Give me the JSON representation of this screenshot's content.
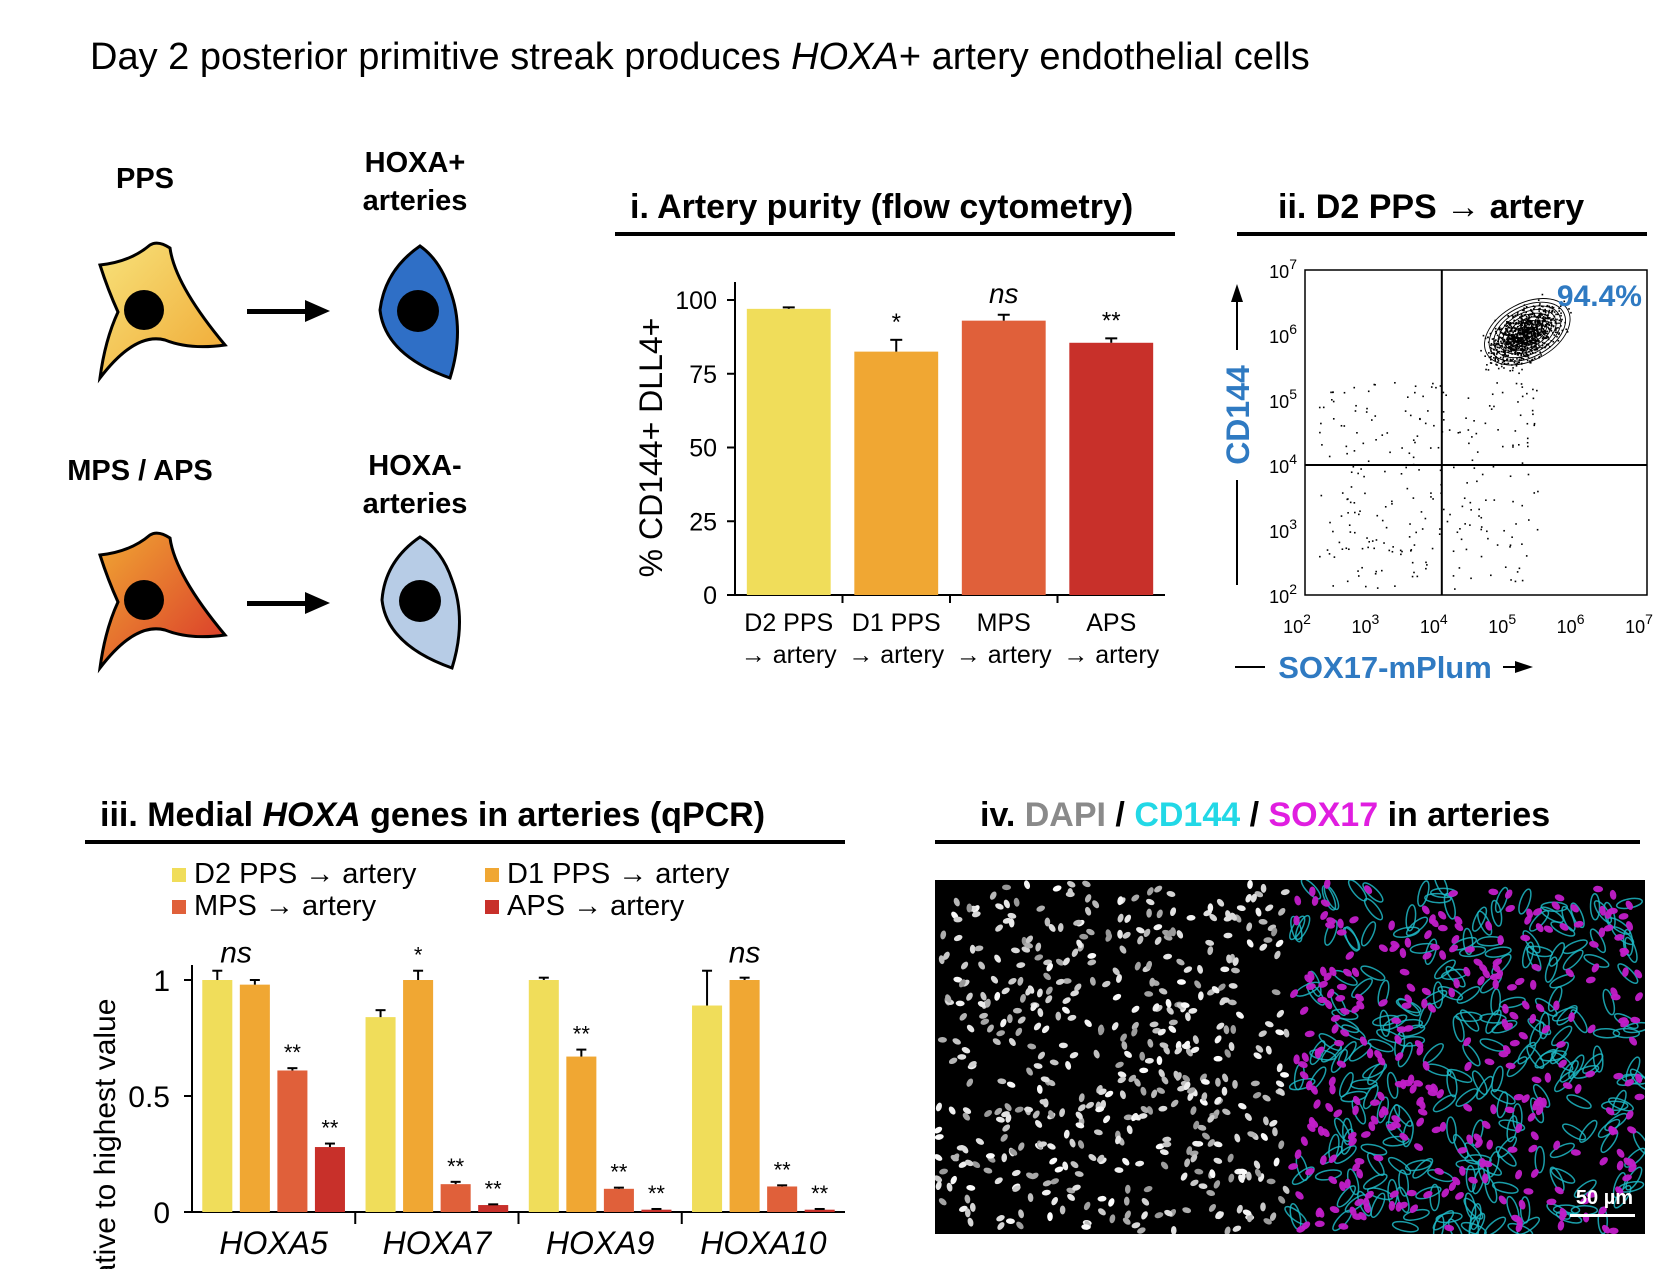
{
  "title": {
    "prefix": "Day 2 posterior primitive streak produces ",
    "italic": "HOXA",
    "suffix": "+ artery endothelial cells"
  },
  "schematic": {
    "pps_label": "PPS",
    "hoxa_pos_label": [
      "HOXA+",
      "arteries"
    ],
    "mps_aps_label": "MPS / APS",
    "hoxa_neg_label": [
      "HOXA-",
      "arteries"
    ],
    "colors": {
      "pps_cell": "#f1c232",
      "mps_cell": "#e8712a",
      "hoxa_pos": "#2f6fc6",
      "hoxa_neg": "#b7cce6"
    }
  },
  "panel_i": {
    "title": "i. Artery purity (flow cytometry)"
  },
  "panel_ii": {
    "title": "ii. D2 PPS → artery",
    "ylabel": "CD144",
    "xlabel": "SOX17-mPlum",
    "quadrant_percent": "94.4%",
    "label_color": "#2f7ac2"
  },
  "panel_iii": {
    "title_prefix": "iii. Medial ",
    "title_italic": "HOXA",
    "title_suffix": " genes in arteries (qPCR)",
    "legend": [
      "D2 PPS → artery",
      "D1 PPS → artery",
      "MPS → artery",
      "APS → artery"
    ]
  },
  "panel_iv": {
    "title_prefix": "iv. ",
    "dapi": "DAPI",
    "sep1": " / ",
    "cd144": "CD144",
    "sep2": " / ",
    "sox17": "SOX17",
    "suffix": " in arteries",
    "scale_bar": "50 µm",
    "colors": {
      "dapi": "#8a8a8a",
      "cd144": "#22d8e6",
      "sox17": "#e01ee0"
    }
  },
  "chart_data": [
    {
      "type": "bar",
      "panel": "i",
      "categories": [
        "D2 PPS → artery",
        "D1 PPS → artery",
        "MPS → artery",
        "APS → artery"
      ],
      "category_lines": [
        [
          "D2 PPS",
          "→ artery"
        ],
        [
          "D1 PPS",
          "→ artery"
        ],
        [
          "MPS",
          "→ artery"
        ],
        [
          "APS",
          "→ artery"
        ]
      ],
      "values": [
        97,
        82.5,
        93,
        85.5
      ],
      "errors": [
        0.5,
        4,
        2,
        1.5
      ],
      "significance": [
        "",
        "*",
        "ns",
        "**"
      ],
      "colors": [
        "#f0dd5a",
        "#f0a733",
        "#e0603a",
        "#c8302a"
      ],
      "ylabel": "% CD144+ DLL4+",
      "yticks": [
        0,
        25,
        50,
        75,
        100
      ],
      "ylim": [
        0,
        100
      ]
    },
    {
      "type": "scatter",
      "panel": "ii",
      "xlabel": "SOX17-mPlum",
      "ylabel": "CD144",
      "xscale": "log",
      "yscale": "log",
      "xlim": [
        2,
        7
      ],
      "ylim": [
        2,
        7
      ],
      "xticks": [
        "10^2",
        "10^3",
        "10^4",
        "10^5",
        "10^6",
        "10^7"
      ],
      "yticks": [
        "10^2",
        "10^3",
        "10^4",
        "10^5",
        "10^6",
        "10^7"
      ],
      "gate_x": 4.0,
      "gate_y": 4.0,
      "upper_right_percent": "94.4%",
      "population_center": [
        5.2,
        6.0
      ]
    },
    {
      "type": "bar",
      "panel": "iii",
      "categories": [
        "HOXA5",
        "HOXA7",
        "HOXA9",
        "HOXA10"
      ],
      "series": [
        {
          "name": "D2 PPS → artery",
          "values": [
            1.0,
            0.84,
            1.0,
            0.89
          ],
          "errors": [
            0.04,
            0.03,
            0.01,
            0.15
          ],
          "color": "#f0dd5a"
        },
        {
          "name": "D1 PPS → artery",
          "values": [
            0.98,
            1.0,
            0.67,
            1.0
          ],
          "errors": [
            0.02,
            0.04,
            0.03,
            0.01
          ],
          "color": "#f0a733"
        },
        {
          "name": "MPS → artery",
          "values": [
            0.61,
            0.12,
            0.1,
            0.11
          ],
          "errors": [
            0.01,
            0.01,
            0.005,
            0.005
          ],
          "color": "#e0603a"
        },
        {
          "name": "APS → artery",
          "values": [
            0.28,
            0.03,
            0.01,
            0.01
          ],
          "errors": [
            0.015,
            0.003,
            0.003,
            0.003
          ],
          "color": "#c8302a"
        }
      ],
      "significance": [
        [
          "",
          "",
          "**",
          "**"
        ],
        [
          "",
          "*",
          "**",
          "**"
        ],
        [
          "",
          "**",
          "**",
          "**"
        ],
        [
          "",
          "",
          "**",
          "**"
        ]
      ],
      "group_labels": [
        "ns",
        "",
        "",
        "ns"
      ],
      "ylabel": "Relative to highest value",
      "yticks": [
        "0",
        "0.5",
        "1"
      ],
      "ylim": [
        0,
        1
      ]
    }
  ]
}
